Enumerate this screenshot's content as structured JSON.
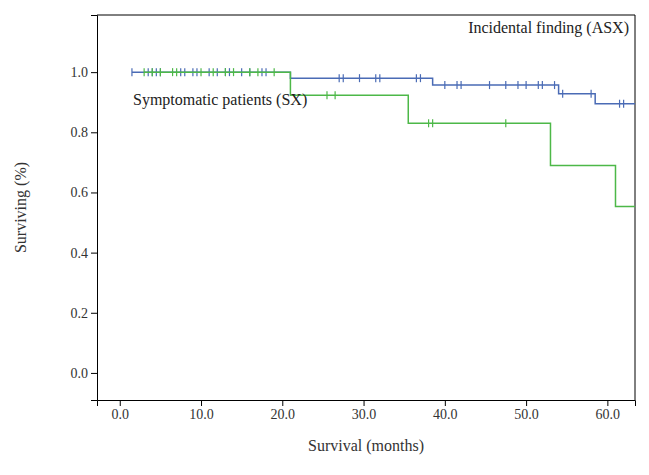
{
  "chart_data": {
    "type": "line",
    "x_label": "Survival (months)",
    "y_label": "Surviving (%)",
    "xlim": [
      -2.8,
      63.4
    ],
    "ylim": [
      -0.09,
      1.19
    ],
    "xticks": [
      {
        "value": 0,
        "label": "0.0"
      },
      {
        "value": 10,
        "label": "10.0"
      },
      {
        "value": 20,
        "label": "20.0"
      },
      {
        "value": 30,
        "label": "30.0"
      },
      {
        "value": 40,
        "label": "40.0"
      },
      {
        "value": 50,
        "label": "50.0"
      },
      {
        "value": 60,
        "label": "60.0"
      }
    ],
    "yticks": [
      {
        "value": 0,
        "label": "0.0"
      },
      {
        "value": 0.2,
        "label": "0.2"
      },
      {
        "value": 0.4,
        "label": "0.4"
      },
      {
        "value": 0.6,
        "label": "0.6"
      },
      {
        "value": 0.8,
        "label": "0.8"
      },
      {
        "value": 1,
        "label": "1.0"
      }
    ],
    "line_style": "step",
    "series": [
      {
        "name": "Incidental finding (ASX)",
        "color": "#4a6bb5",
        "marker": "tick",
        "x": [
          1.5,
          21,
          38.5,
          54,
          58.5,
          63.4
        ],
        "values": [
          1.0,
          0.98,
          0.957,
          0.928,
          0.895,
          0.895
        ],
        "censored_x": [
          1.5,
          3.5,
          4,
          4.5,
          5,
          7.5,
          8,
          9,
          9.5,
          11,
          12,
          13,
          13.5,
          15,
          16,
          17.5,
          18,
          27,
          27.5,
          29.5,
          31.5,
          32,
          36.5,
          37,
          40,
          41.5,
          42,
          45.5,
          47.5,
          49,
          50,
          51.5,
          52,
          53.5,
          54.5,
          58,
          61.5,
          62
        ],
        "censored_y": [
          1.0,
          1.0,
          1.0,
          1.0,
          1.0,
          1.0,
          1.0,
          1.0,
          1.0,
          1.0,
          1.0,
          1.0,
          1.0,
          1.0,
          1.0,
          1.0,
          1.0,
          0.98,
          0.98,
          0.98,
          0.98,
          0.98,
          0.98,
          0.98,
          0.957,
          0.957,
          0.957,
          0.957,
          0.957,
          0.957,
          0.957,
          0.957,
          0.957,
          0.957,
          0.928,
          0.928,
          0.895,
          0.895
        ]
      },
      {
        "name": "Symptomatic patients (SX)",
        "color": "#4db848",
        "marker": "tick",
        "x": [
          3,
          21,
          35.5,
          53,
          61,
          63.4
        ],
        "values": [
          1.0,
          0.923,
          0.83,
          0.69,
          0.553,
          0.553
        ],
        "censored_x": [
          3,
          4,
          5,
          6.5,
          7,
          10,
          11.5,
          13,
          14,
          16,
          17,
          19,
          25.5,
          26.5,
          38,
          38.5,
          47.5
        ],
        "censored_y": [
          1.0,
          1.0,
          1.0,
          1.0,
          1.0,
          1.0,
          1.0,
          1.0,
          1.0,
          1.0,
          1.0,
          1.0,
          0.923,
          0.923,
          0.83,
          0.83,
          0.83
        ]
      }
    ]
  }
}
